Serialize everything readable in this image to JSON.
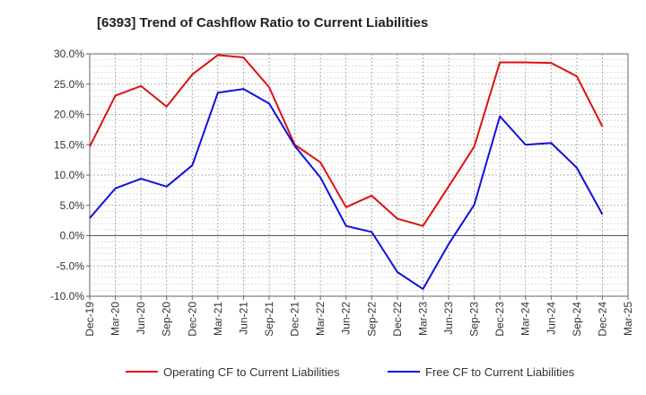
{
  "chart_data": {
    "type": "line",
    "title": "[6393]  Trend of Cashflow Ratio to Current Liabilities",
    "xlabel": "",
    "ylabel": "",
    "x": [
      "Dec-19",
      "Mar-20",
      "Jun-20",
      "Sep-20",
      "Dec-20",
      "Mar-21",
      "Jun-21",
      "Sep-21",
      "Dec-21",
      "Mar-22",
      "Jun-22",
      "Sep-22",
      "Dec-22",
      "Mar-23",
      "Jun-23",
      "Sep-23",
      "Dec-23",
      "Mar-24",
      "Jun-24",
      "Sep-24",
      "Dec-24",
      "Mar-25"
    ],
    "ylim": [
      -10,
      30
    ],
    "yticks": [
      -10,
      -5,
      0,
      5,
      10,
      15,
      20,
      25,
      30
    ],
    "ytick_labels": [
      "-10.0%",
      "-5.0%",
      "0.0%",
      "5.0%",
      "10.0%",
      "15.0%",
      "20.0%",
      "25.0%",
      "30.0%"
    ],
    "grid": true,
    "legend_position": "bottom",
    "series": [
      {
        "name": "Operating CF to Current Liabilities",
        "color": "#dd1111",
        "values": [
          14.7,
          23.1,
          24.7,
          21.3,
          26.6,
          29.8,
          29.4,
          24.5,
          15.0,
          12.1,
          4.7,
          6.6,
          2.8,
          1.6,
          8.1,
          14.7,
          28.6,
          28.6,
          28.5,
          26.3,
          18.0,
          null
        ]
      },
      {
        "name": "Free CF to Current Liabilities",
        "color": "#1111dd",
        "values": [
          2.9,
          7.8,
          9.4,
          8.1,
          11.6,
          23.6,
          24.2,
          21.8,
          14.8,
          9.6,
          1.6,
          0.6,
          -6.0,
          -8.8,
          -1.4,
          5.1,
          19.7,
          15.0,
          15.3,
          11.2,
          3.5,
          null
        ]
      }
    ]
  }
}
